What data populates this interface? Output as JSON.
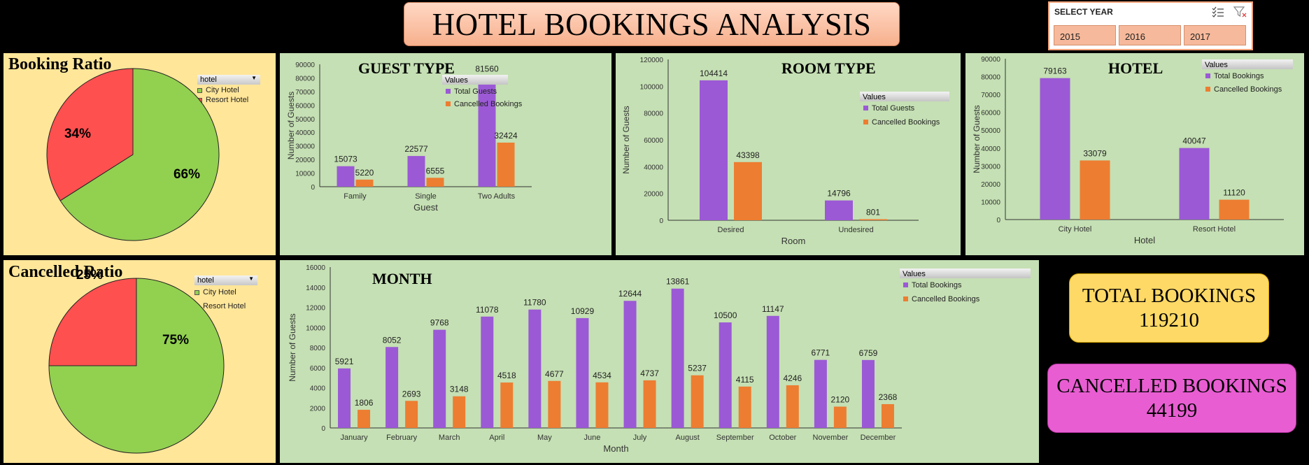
{
  "title": "HOTEL BOOKINGS ANALYSIS",
  "slicer": {
    "title": "SELECT YEAR",
    "icons": [
      "multi-select-icon",
      "clear-filter-icon"
    ],
    "options": [
      "2015",
      "2016",
      "2017"
    ]
  },
  "booking_ratio": {
    "title": "Booking Ratio",
    "filter_label": "hotel",
    "legend": [
      "City Hotel",
      "Resort Hotel"
    ]
  },
  "cancelled_ratio": {
    "title": "Cancelled Ratio",
    "filter_label": "hotel",
    "legend": [
      "City Hotel",
      "Resort Hotel"
    ]
  },
  "guest_type": {
    "title": "GUEST TYPE",
    "legend_header": "Values"
  },
  "room_type": {
    "title": "ROOM TYPE",
    "legend_header": "Values"
  },
  "hotel": {
    "title": "HOTEL",
    "legend_header": "Values"
  },
  "month": {
    "title": "MONTH",
    "legend_header": "Values"
  },
  "kpis": {
    "total_label": "TOTAL BOOKINGS",
    "total_value": "119210",
    "cancelled_label": "CANCELLED BOOKINGS",
    "cancelled_value": "44199"
  },
  "colors": {
    "purple": "#9b59d6",
    "orange": "#ed7d31",
    "pie_green": "#92d050",
    "pie_red": "#ff5050",
    "panel_green": "#c5e0b4",
    "panel_yellow": "#ffe699"
  },
  "chart_data": [
    {
      "id": "booking_ratio",
      "type": "pie",
      "categories": [
        "City Hotel",
        "Resort Hotel"
      ],
      "values": [
        66,
        34
      ],
      "labels": [
        "66%",
        "34%"
      ]
    },
    {
      "id": "cancelled_ratio",
      "type": "pie",
      "categories": [
        "City Hotel",
        "Resort Hotel"
      ],
      "values": [
        75,
        25
      ],
      "labels": [
        "75%",
        "25%"
      ]
    },
    {
      "id": "guest_type",
      "type": "bar",
      "categories": [
        "Family",
        "Single",
        "Two Adults"
      ],
      "series": [
        {
          "name": "Total Guests",
          "values": [
            15073,
            22577,
            81560
          ]
        },
        {
          "name": "Cancelled Bookings",
          "values": [
            5220,
            6555,
            32424
          ]
        }
      ],
      "xlabel": "Guest",
      "ylabel": "Number of Guests",
      "ylim": [
        0,
        90000
      ],
      "yticks": [
        0,
        10000,
        20000,
        30000,
        40000,
        50000,
        60000,
        70000,
        80000,
        90000
      ]
    },
    {
      "id": "room_type",
      "type": "bar",
      "categories": [
        "Desired",
        "Undesired"
      ],
      "series": [
        {
          "name": "Total Guests",
          "values": [
            104414,
            14796
          ]
        },
        {
          "name": "Cancelled Bookings",
          "values": [
            43398,
            801
          ]
        }
      ],
      "xlabel": "Room",
      "ylabel": "Number of Guests",
      "ylim": [
        0,
        120000
      ],
      "yticks": [
        0,
        20000,
        40000,
        60000,
        80000,
        100000,
        120000
      ]
    },
    {
      "id": "hotel",
      "type": "bar",
      "categories": [
        "City Hotel",
        "Resort Hotel"
      ],
      "series": [
        {
          "name": "Total Bookings",
          "values": [
            79163,
            40047
          ]
        },
        {
          "name": "Cancelled Bookings",
          "values": [
            33079,
            11120
          ]
        }
      ],
      "xlabel": "Hotel",
      "ylabel": "Number of Guests",
      "ylim": [
        0,
        90000
      ],
      "yticks": [
        0,
        10000,
        20000,
        30000,
        40000,
        50000,
        60000,
        70000,
        80000,
        90000
      ]
    },
    {
      "id": "month",
      "type": "bar",
      "categories": [
        "January",
        "February",
        "March",
        "April",
        "May",
        "June",
        "July",
        "August",
        "September",
        "October",
        "November",
        "December"
      ],
      "series": [
        {
          "name": "Total Bookings",
          "values": [
            5921,
            8052,
            9768,
            11078,
            11780,
            10929,
            12644,
            13861,
            10500,
            11147,
            6771,
            6759
          ]
        },
        {
          "name": "Cancelled Bookings",
          "values": [
            1806,
            2693,
            3148,
            4518,
            4677,
            4534,
            4737,
            5237,
            4115,
            4246,
            2120,
            2368
          ]
        }
      ],
      "xlabel": "Month",
      "ylabel": "Number of Guests",
      "ylim": [
        0,
        16000
      ],
      "yticks": [
        0,
        2000,
        4000,
        6000,
        8000,
        10000,
        12000,
        14000,
        16000
      ]
    }
  ]
}
